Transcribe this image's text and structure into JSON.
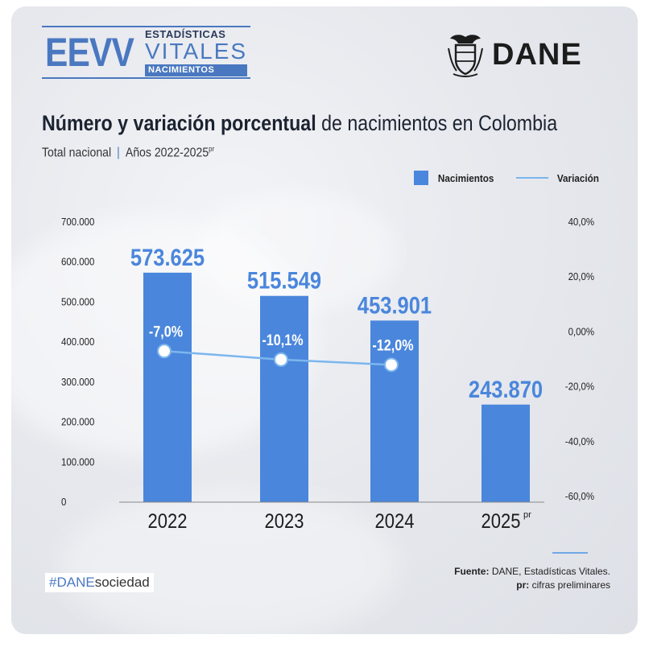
{
  "header": {
    "eevv": "EEVV",
    "eevv_line1": "ESTADÍSTICAS",
    "eevv_line2": "VITALES",
    "eevv_line3": "NACIMIENTOS",
    "dane": "DANE"
  },
  "title_bold": "Número y variación porcentual",
  "title_rest": " de nacimientos en Colombia",
  "subtitle_left": "Total nacional",
  "subtitle_sep": "|",
  "subtitle_right": "Años 2022-2025",
  "subtitle_sup": "pr",
  "footer": {
    "hashtag_brand": "#DANE",
    "hashtag_rest": "sociedad",
    "source_label": "Fuente:",
    "source_text": " DANE, Estadísticas Vitales.",
    "note_label": "pr:",
    "note_text": " cifras preliminares"
  },
  "colors": {
    "bar": "#4a86dc",
    "line": "#7cb6ee",
    "brand": "#4a78c0"
  },
  "chart_data": {
    "type": "bar",
    "categories": [
      "2022",
      "2023",
      "2024",
      "2025"
    ],
    "category_sups": [
      "",
      "",
      "",
      "pr"
    ],
    "series": [
      {
        "name": "Nacimientos",
        "type": "bar",
        "axis": "left",
        "values": [
          573625,
          515549,
          453901,
          243870
        ],
        "labels": [
          "573.625",
          "515.549",
          "453.901",
          "243.870"
        ]
      },
      {
        "name": "Variación",
        "type": "line",
        "axis": "right",
        "values": [
          -7.0,
          -10.1,
          -12.0,
          null
        ],
        "labels": [
          "-7,0%",
          "-10,1%",
          "-12,0%",
          ""
        ]
      }
    ],
    "y_left": {
      "lim": [
        0,
        700000
      ],
      "ticks": [
        0,
        100000,
        200000,
        300000,
        400000,
        500000,
        600000,
        700000
      ],
      "tick_labels": [
        "0",
        "100.000",
        "200.000",
        "300.000",
        "400.000",
        "500.000",
        "600.000",
        "700.000"
      ]
    },
    "y_right": {
      "lim": [
        -60,
        40
      ],
      "ticks": [
        -60,
        -40,
        -20,
        0,
        20,
        40
      ],
      "tick_labels": [
        "-60,0%",
        "-40,0%",
        "-20,0%",
        "0,00%",
        "20,0%",
        "40,0%"
      ]
    },
    "legend_position": "top-right",
    "grid": false
  }
}
